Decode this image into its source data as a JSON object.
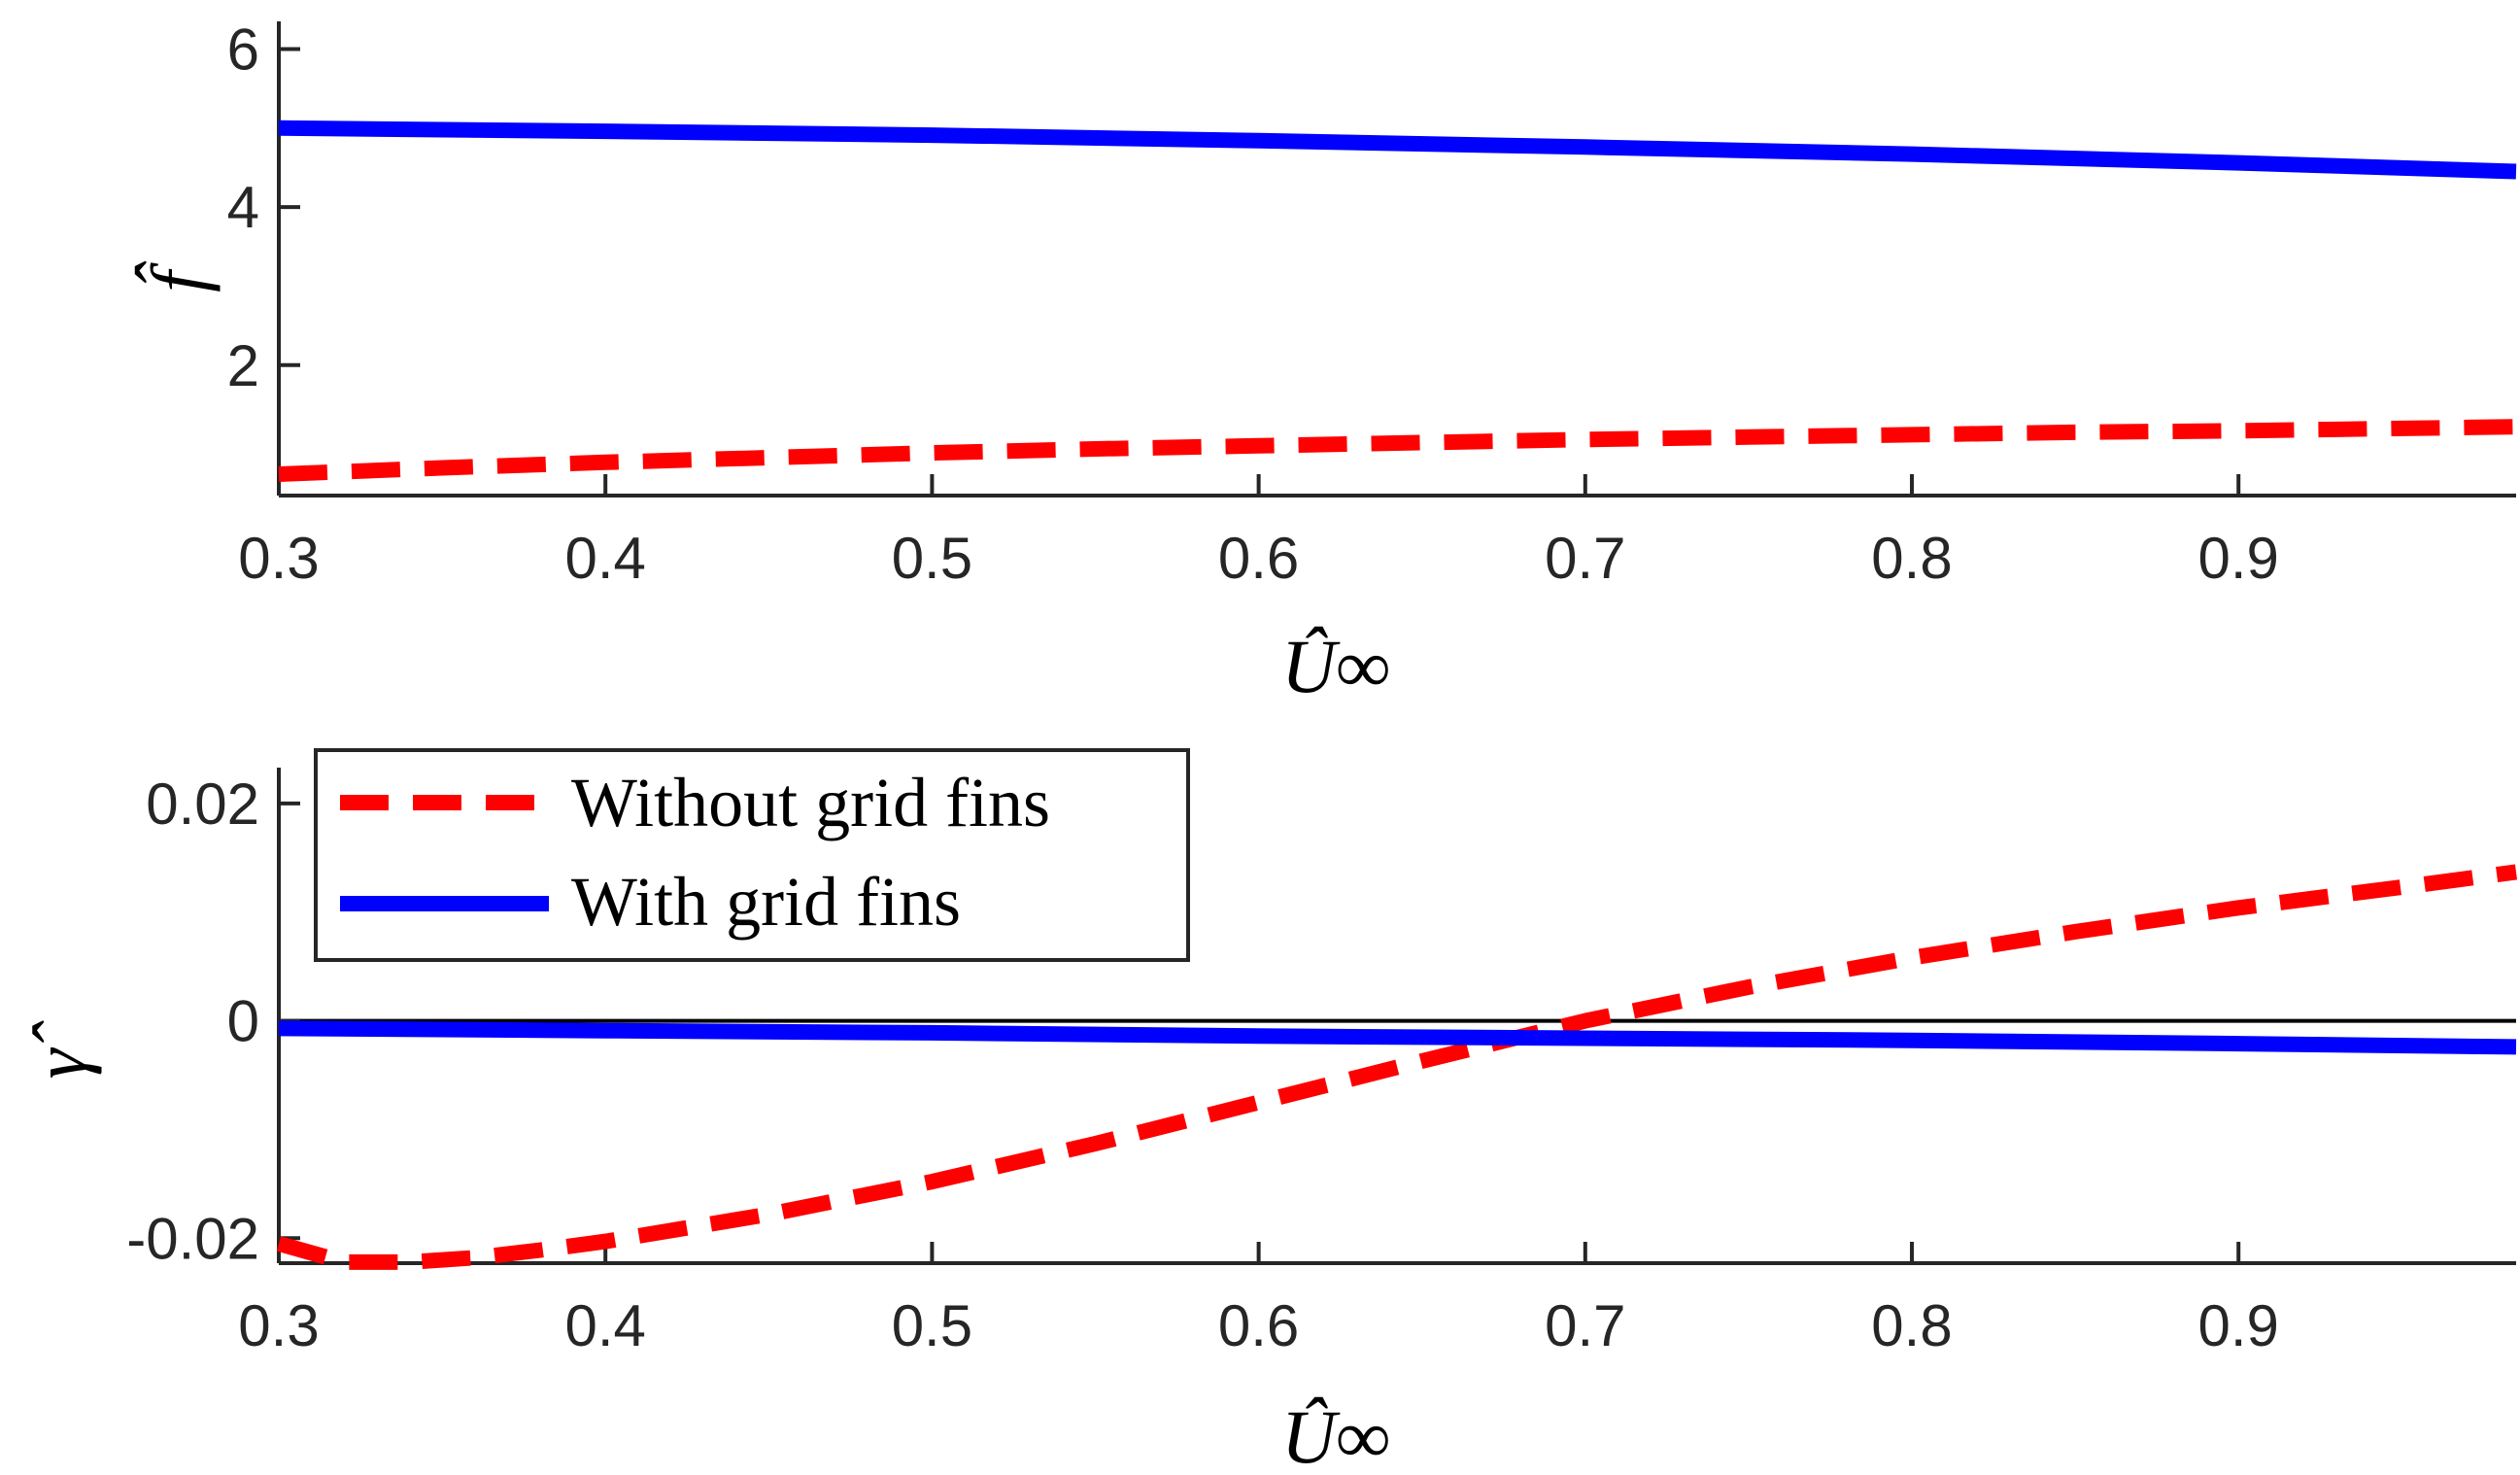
{
  "chart_data": [
    {
      "type": "line",
      "title": "",
      "xlabel": "Û∞",
      "ylabel": "f̂",
      "xlim": [
        0.3,
        0.985
      ],
      "ylim": [
        0.35,
        6.35
      ],
      "xticks": [
        "0.3",
        "0.4",
        "0.5",
        "0.6",
        "0.7",
        "0.8",
        "0.9"
      ],
      "yticks": [
        "2",
        "4",
        "6"
      ],
      "grid": false,
      "series": [
        {
          "name": "Without grid fins",
          "style": "dashed",
          "color": "#ff0000",
          "x": [
            0.3,
            0.35,
            0.4,
            0.45,
            0.5,
            0.55,
            0.6,
            0.65,
            0.7,
            0.75,
            0.8,
            0.85,
            0.9,
            0.95,
            0.985
          ],
          "y": [
            0.62,
            0.7,
            0.77,
            0.83,
            0.89,
            0.94,
            0.98,
            1.02,
            1.06,
            1.09,
            1.12,
            1.15,
            1.17,
            1.2,
            1.22
          ]
        },
        {
          "name": "With grid fins",
          "style": "solid",
          "color": "#0000ff",
          "x": [
            0.3,
            0.4,
            0.5,
            0.6,
            0.7,
            0.8,
            0.9,
            0.985
          ],
          "y": [
            5.0,
            4.96,
            4.91,
            4.84,
            4.76,
            4.67,
            4.56,
            4.45
          ]
        }
      ]
    },
    {
      "type": "line",
      "title": "",
      "xlabel": "Û∞",
      "ylabel": "γ̂",
      "xlim": [
        0.3,
        0.985
      ],
      "ylim": [
        -0.0223,
        0.0233
      ],
      "xticks": [
        "0.3",
        "0.4",
        "0.5",
        "0.6",
        "0.7",
        "0.8",
        "0.9"
      ],
      "yticks": [
        "-0.02",
        "0",
        "0.02"
      ],
      "grid": false,
      "zero_line": true,
      "legend": {
        "position": "top-left",
        "entries": [
          "Without grid fins",
          "With grid fins"
        ]
      },
      "series": [
        {
          "name": "Without grid fins",
          "style": "dashed",
          "color": "#ff0000",
          "x": [
            0.3,
            0.32,
            0.34,
            0.36,
            0.38,
            0.4,
            0.45,
            0.5,
            0.55,
            0.6,
            0.65,
            0.7,
            0.75,
            0.8,
            0.85,
            0.9,
            0.95,
            0.985
          ],
          "y": [
            -0.0205,
            -0.0222,
            -0.0222,
            -0.0218,
            -0.0211,
            -0.0203,
            -0.0178,
            -0.0148,
            -0.0113,
            -0.0075,
            -0.0037,
            0.0,
            0.0031,
            0.0058,
            0.0082,
            0.0104,
            0.0123,
            0.0137
          ]
        },
        {
          "name": "With grid fins",
          "style": "solid",
          "color": "#0000ff",
          "x": [
            0.3,
            0.4,
            0.5,
            0.6,
            0.7,
            0.8,
            0.9,
            0.985
          ],
          "y": [
            -0.0007,
            -0.0009,
            -0.0011,
            -0.0014,
            -0.0016,
            -0.0018,
            -0.0021,
            -0.0024
          ]
        }
      ]
    }
  ]
}
